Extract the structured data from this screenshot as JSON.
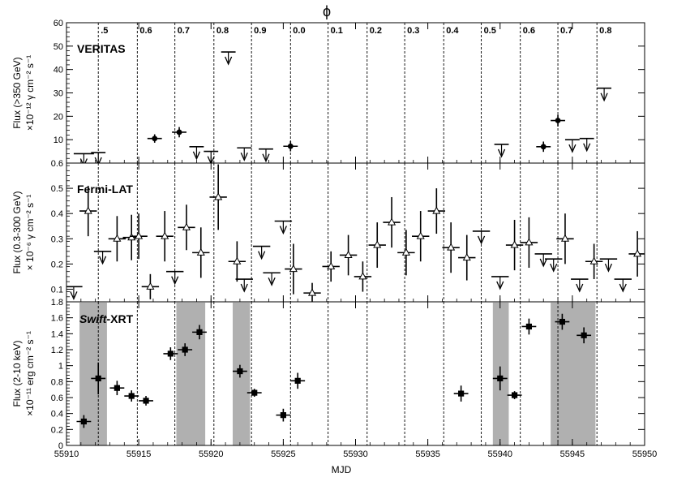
{
  "figure": {
    "top_axis_label": "ϕ",
    "x_axis_label": "MJD"
  },
  "chart_data": {
    "type": "scatter",
    "xlim": [
      55910,
      55950
    ],
    "x_ticks": [
      55910,
      55915,
      55920,
      55925,
      55930,
      55935,
      55940,
      55945,
      55950
    ],
    "phase_lines": [
      {
        "x": 55912.2,
        "label": ".5"
      },
      {
        "x": 55914.9,
        "label": "0.6"
      },
      {
        "x": 55917.5,
        "label": "0.7"
      },
      {
        "x": 55920.2,
        "label": "0.8"
      },
      {
        "x": 55922.8,
        "label": "0.9"
      },
      {
        "x": 55925.5,
        "label": "0.0"
      },
      {
        "x": 55928.1,
        "label": "0.1"
      },
      {
        "x": 55930.8,
        "label": "0.2"
      },
      {
        "x": 55933.4,
        "label": "0.3"
      },
      {
        "x": 55936.1,
        "label": "0.4"
      },
      {
        "x": 55938.7,
        "label": "0.5"
      },
      {
        "x": 55941.4,
        "label": "0.6"
      },
      {
        "x": 55944.0,
        "label": "0.7"
      },
      {
        "x": 55946.7,
        "label": "0.8"
      }
    ],
    "panels": [
      {
        "id": "veritas",
        "title": "VERITAS",
        "ylabel_line1": "Flux (>350 GeV)",
        "ylabel_line2": "×10⁻¹² γ cm⁻² s⁻¹",
        "ylim": [
          0,
          60
        ],
        "y_ticks": [
          10,
          20,
          30,
          40,
          50,
          60
        ],
        "y_tick_labels": [
          "10",
          "20",
          "30",
          "40",
          "50",
          "60"
        ],
        "marker": "filled-circle",
        "points": [
          {
            "x": 55916.1,
            "y": 10.5,
            "xerr": 0.5,
            "yerr": 1.8
          },
          {
            "x": 55917.8,
            "y": 13.2,
            "xerr": 0.5,
            "yerr": 2.2
          },
          {
            "x": 55925.5,
            "y": 7.2,
            "xerr": 0.5,
            "yerr": 2.2
          },
          {
            "x": 55943.0,
            "y": 7.0,
            "xerr": 0.5,
            "yerr": 2.2
          },
          {
            "x": 55944.0,
            "y": 18.2,
            "xerr": 0.5,
            "yerr": 2.5
          }
        ],
        "upper_limits": [
          {
            "x": 55911.2,
            "y": 4.0,
            "xerr": 0.7
          },
          {
            "x": 55912.2,
            "y": 4.5,
            "xerr": 0.5
          },
          {
            "x": 55919.0,
            "y": 7.0,
            "xerr": 0.5
          },
          {
            "x": 55920.0,
            "y": 5.0,
            "xerr": 0.5
          },
          {
            "x": 55921.2,
            "y": 47.5,
            "xerr": 0.5
          },
          {
            "x": 55922.3,
            "y": 6.5,
            "xerr": 0.5
          },
          {
            "x": 55923.8,
            "y": 6.0,
            "xerr": 0.5
          },
          {
            "x": 55940.1,
            "y": 8.0,
            "xerr": 0.5
          },
          {
            "x": 55945.0,
            "y": 10.0,
            "xerr": 0.5
          },
          {
            "x": 55946.0,
            "y": 10.5,
            "xerr": 0.5
          },
          {
            "x": 55947.2,
            "y": 32.0,
            "xerr": 0.5
          }
        ]
      },
      {
        "id": "fermi",
        "title": "Fermi-LAT",
        "ylabel_line1": "Flux (0.3-300 GeV)",
        "ylabel_line2": "× 10⁻⁶ γ cm⁻² s⁻¹",
        "ylim": [
          0.05,
          0.6
        ],
        "y_ticks": [
          0.1,
          0.2,
          0.3,
          0.4,
          0.5,
          0.6
        ],
        "y_tick_labels": [
          "0.1",
          "0.2",
          "0.3",
          "0.4",
          "0.5",
          "0.6"
        ],
        "marker": "open-triangle",
        "points": [
          {
            "x": 55911.5,
            "y": 0.41,
            "xerr": 0.6,
            "yerr": 0.1
          },
          {
            "x": 55913.5,
            "y": 0.3,
            "xerr": 0.6,
            "yerr": 0.09
          },
          {
            "x": 55914.5,
            "y": 0.305,
            "xerr": 0.6,
            "yerr": 0.09
          },
          {
            "x": 55915.0,
            "y": 0.31,
            "xerr": 0.6,
            "yerr": 0.09
          },
          {
            "x": 55915.8,
            "y": 0.11,
            "xerr": 0.6,
            "yerr": 0.05
          },
          {
            "x": 55916.8,
            "y": 0.31,
            "xerr": 0.6,
            "yerr": 0.1
          },
          {
            "x": 55918.3,
            "y": 0.345,
            "xerr": 0.6,
            "yerr": 0.09
          },
          {
            "x": 55919.3,
            "y": 0.245,
            "xerr": 0.6,
            "yerr": 0.1
          },
          {
            "x": 55920.5,
            "y": 0.465,
            "xerr": 0.6,
            "yerr": 0.13
          },
          {
            "x": 55921.8,
            "y": 0.21,
            "xerr": 0.6,
            "yerr": 0.08
          },
          {
            "x": 55925.7,
            "y": 0.18,
            "xerr": 0.6,
            "yerr": 0.1
          },
          {
            "x": 55927.0,
            "y": 0.085,
            "xerr": 0.6,
            "yerr": 0.04
          },
          {
            "x": 55928.3,
            "y": 0.19,
            "xerr": 0.6,
            "yerr": 0.06
          },
          {
            "x": 55929.5,
            "y": 0.235,
            "xerr": 0.6,
            "yerr": 0.08
          },
          {
            "x": 55930.5,
            "y": 0.15,
            "xerr": 0.6,
            "yerr": 0.06
          },
          {
            "x": 55931.5,
            "y": 0.275,
            "xerr": 0.6,
            "yerr": 0.09
          },
          {
            "x": 55932.5,
            "y": 0.365,
            "xerr": 0.6,
            "yerr": 0.1
          },
          {
            "x": 55933.5,
            "y": 0.245,
            "xerr": 0.6,
            "yerr": 0.09
          },
          {
            "x": 55934.5,
            "y": 0.31,
            "xerr": 0.6,
            "yerr": 0.1
          },
          {
            "x": 55935.6,
            "y": 0.41,
            "xerr": 0.6,
            "yerr": 0.09
          },
          {
            "x": 55936.6,
            "y": 0.265,
            "xerr": 0.6,
            "yerr": 0.1
          },
          {
            "x": 55937.7,
            "y": 0.225,
            "xerr": 0.6,
            "yerr": 0.09
          },
          {
            "x": 55941.0,
            "y": 0.275,
            "xerr": 0.6,
            "yerr": 0.1
          },
          {
            "x": 55942.0,
            "y": 0.285,
            "xerr": 0.6,
            "yerr": 0.1
          },
          {
            "x": 55944.5,
            "y": 0.3,
            "xerr": 0.6,
            "yerr": 0.1
          },
          {
            "x": 55946.5,
            "y": 0.21,
            "xerr": 0.6,
            "yerr": 0.07
          },
          {
            "x": 55949.5,
            "y": 0.24,
            "xerr": 0.6,
            "yerr": 0.09
          }
        ],
        "upper_limits": [
          {
            "x": 55910.5,
            "y": 0.11,
            "xerr": 0.6
          },
          {
            "x": 55912.5,
            "y": 0.25,
            "xerr": 0.6
          },
          {
            "x": 55917.5,
            "y": 0.17,
            "xerr": 0.6
          },
          {
            "x": 55922.3,
            "y": 0.14,
            "xerr": 0.6
          },
          {
            "x": 55923.5,
            "y": 0.27,
            "xerr": 0.6
          },
          {
            "x": 55924.2,
            "y": 0.165,
            "xerr": 0.6
          },
          {
            "x": 55925.0,
            "y": 0.37,
            "xerr": 0.6
          },
          {
            "x": 55938.7,
            "y": 0.33,
            "xerr": 0.6
          },
          {
            "x": 55940.0,
            "y": 0.15,
            "xerr": 0.6
          },
          {
            "x": 55943.0,
            "y": 0.24,
            "xerr": 0.6
          },
          {
            "x": 55943.7,
            "y": 0.22,
            "xerr": 0.6
          },
          {
            "x": 55945.5,
            "y": 0.14,
            "xerr": 0.6
          },
          {
            "x": 55947.5,
            "y": 0.22,
            "xerr": 0.6
          },
          {
            "x": 55948.5,
            "y": 0.14,
            "xerr": 0.6
          }
        ]
      },
      {
        "id": "swift",
        "title_italic": "Swift",
        "title_rest": "-XRT",
        "ylabel_line1": "Flux (2-10 keV)",
        "ylabel_line2": "×10⁻¹¹ erg cm⁻² s⁻¹",
        "ylim": [
          0,
          1.8
        ],
        "y_ticks": [
          0,
          0.2,
          0.4,
          0.6,
          0.8,
          1,
          1.2,
          1.4,
          1.6,
          1.8
        ],
        "y_tick_labels": [
          "0",
          "0.2",
          "0.4",
          "0.6",
          "0.8",
          "1",
          "1.2",
          "1.4",
          "1.6",
          "1.8"
        ],
        "marker": "filled-square",
        "shaded_bands": [
          [
            55910.9,
            55912.8
          ],
          [
            55917.6,
            55919.6
          ],
          [
            55921.5,
            55922.7
          ],
          [
            55939.5,
            55940.6
          ],
          [
            55943.5,
            55946.6
          ]
        ],
        "points": [
          {
            "x": 55911.2,
            "y": 0.3,
            "xerr": 0.5,
            "yerr": 0.08
          },
          {
            "x": 55912.2,
            "y": 0.84,
            "xerr": 0.5,
            "yerr": 0.2
          },
          {
            "x": 55913.5,
            "y": 0.72,
            "xerr": 0.5,
            "yerr": 0.09
          },
          {
            "x": 55914.5,
            "y": 0.62,
            "xerr": 0.5,
            "yerr": 0.07
          },
          {
            "x": 55915.5,
            "y": 0.56,
            "xerr": 0.5,
            "yerr": 0.06
          },
          {
            "x": 55917.2,
            "y": 1.15,
            "xerr": 0.5,
            "yerr": 0.08
          },
          {
            "x": 55918.2,
            "y": 1.2,
            "xerr": 0.5,
            "yerr": 0.08
          },
          {
            "x": 55919.2,
            "y": 1.42,
            "xerr": 0.5,
            "yerr": 0.09
          },
          {
            "x": 55922.0,
            "y": 0.93,
            "xerr": 0.5,
            "yerr": 0.08
          },
          {
            "x": 55923.0,
            "y": 0.66,
            "xerr": 0.5,
            "yerr": 0.05
          },
          {
            "x": 55925.0,
            "y": 0.38,
            "xerr": 0.5,
            "yerr": 0.08
          },
          {
            "x": 55926.0,
            "y": 0.81,
            "xerr": 0.5,
            "yerr": 0.1
          },
          {
            "x": 55937.3,
            "y": 0.65,
            "xerr": 0.5,
            "yerr": 0.1
          },
          {
            "x": 55940.0,
            "y": 0.84,
            "xerr": 0.5,
            "yerr": 0.15
          },
          {
            "x": 55941.0,
            "y": 0.63,
            "xerr": 0.5,
            "yerr": 0.05
          },
          {
            "x": 55942.0,
            "y": 1.49,
            "xerr": 0.5,
            "yerr": 0.1
          },
          {
            "x": 55944.3,
            "y": 1.55,
            "xerr": 0.5,
            "yerr": 0.1
          },
          {
            "x": 55945.8,
            "y": 1.38,
            "xerr": 0.5,
            "yerr": 0.1
          }
        ]
      }
    ]
  }
}
